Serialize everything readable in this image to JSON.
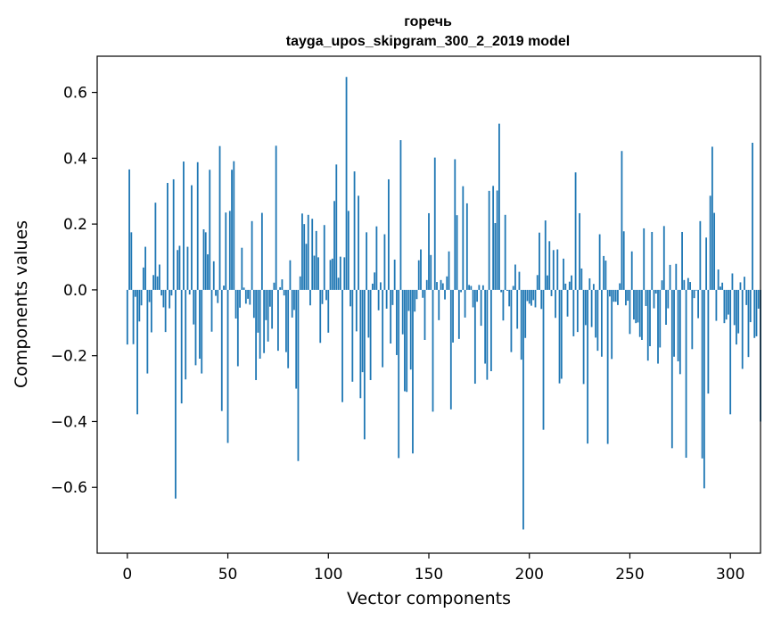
{
  "chart_data": {
    "type": "bar",
    "title": "горечь",
    "subtitle": "tayga_upos_skipgram_300_2_2019 model",
    "xlabel": "Vector components",
    "ylabel": "Components values",
    "xlim": [
      -15,
      315
    ],
    "ylim": [
      -0.8,
      0.71
    ],
    "xticks": [
      0,
      50,
      100,
      150,
      200,
      250,
      300
    ],
    "yticks": [
      0.6,
      0.4,
      0.2,
      0.0,
      -0.2,
      -0.4,
      -0.6
    ],
    "ytick_labels": [
      "0.6",
      "0.4",
      "0.2",
      "0.0",
      "−0.2",
      "−0.4",
      "−0.6"
    ],
    "bar_color": "#1f77b4",
    "values": [
      -0.166,
      0.366,
      0.175,
      -0.165,
      -0.021,
      -0.378,
      -0.096,
      -0.047,
      0.068,
      0.131,
      -0.254,
      -0.037,
      -0.129,
      0.045,
      0.265,
      0.041,
      0.077,
      -0.017,
      -0.053,
      -0.128,
      0.325,
      -0.056,
      -0.017,
      0.336,
      -0.634,
      0.121,
      0.134,
      -0.345,
      0.39,
      -0.272,
      0.131,
      -0.014,
      0.318,
      -0.105,
      -0.229,
      0.388,
      -0.209,
      -0.254,
      0.184,
      0.175,
      0.108,
      0.365,
      -0.127,
      0.087,
      -0.018,
      -0.04,
      0.437,
      -0.368,
      0.013,
      0.235,
      -0.465,
      0.24,
      0.365,
      0.391,
      -0.087,
      -0.232,
      -0.054,
      0.128,
      0.007,
      -0.042,
      -0.027,
      -0.045,
      0.209,
      -0.085,
      -0.274,
      -0.13,
      -0.209,
      0.234,
      -0.192,
      -0.092,
      -0.157,
      -0.051,
      -0.118,
      0.022,
      0.438,
      -0.185,
      0.008,
      0.032,
      -0.017,
      -0.189,
      -0.238,
      0.09,
      -0.084,
      -0.061,
      -0.3,
      -0.52,
      0.041,
      0.232,
      0.2,
      0.14,
      0.228,
      -0.047,
      0.216,
      0.104,
      0.179,
      0.099,
      -0.161,
      -0.043,
      0.197,
      -0.031,
      -0.13,
      0.091,
      0.095,
      0.27,
      0.381,
      0.037,
      0.101,
      -0.341,
      0.099,
      0.647,
      0.24,
      -0.05,
      -0.279,
      0.36,
      -0.126,
      0.286,
      -0.329,
      -0.25,
      -0.454,
      0.175,
      -0.145,
      -0.274,
      0.019,
      0.053,
      0.193,
      -0.062,
      0.023,
      -0.235,
      0.169,
      -0.057,
      0.336,
      -0.163,
      -0.046,
      0.092,
      -0.198,
      -0.511,
      0.455,
      -0.135,
      -0.308,
      -0.31,
      -0.064,
      -0.242,
      -0.497,
      -0.066,
      -0.028,
      0.09,
      0.123,
      -0.024,
      -0.152,
      0.03,
      0.233,
      0.106,
      -0.37,
      0.402,
      0.024,
      -0.092,
      0.03,
      0.02,
      -0.029,
      0.041,
      0.117,
      -0.363,
      -0.16,
      0.397,
      0.227,
      -0.149,
      -0.007,
      0.315,
      -0.084,
      0.263,
      0.015,
      0.012,
      -0.053,
      -0.285,
      -0.036,
      0.015,
      -0.109,
      0.014,
      -0.224,
      -0.273,
      0.301,
      -0.247,
      0.316,
      0.203,
      0.302,
      0.505,
      -0.007,
      -0.093,
      0.228,
      -0.003,
      -0.05,
      -0.189,
      0.012,
      0.077,
      -0.118,
      0.055,
      -0.212,
      -0.728,
      -0.146,
      -0.034,
      -0.042,
      -0.048,
      -0.031,
      -0.053,
      0.045,
      0.174,
      -0.058,
      -0.425,
      0.211,
      0.044,
      0.148,
      -0.019,
      0.121,
      -0.085,
      0.123,
      -0.284,
      -0.27,
      0.095,
      0.019,
      -0.081,
      0.025,
      0.044,
      -0.141,
      0.357,
      -0.128,
      0.233,
      0.065,
      -0.286,
      -0.107,
      -0.467,
      0.035,
      -0.113,
      0.018,
      -0.145,
      -0.185,
      0.169,
      -0.203,
      0.103,
      0.089,
      -0.468,
      -0.02,
      -0.21,
      -0.036,
      -0.036,
      -0.046,
      0.02,
      0.422,
      0.178,
      -0.047,
      -0.033,
      -0.134,
      0.117,
      -0.09,
      -0.101,
      -0.099,
      -0.143,
      -0.152,
      0.187,
      -0.049,
      -0.215,
      -0.171,
      0.176,
      -0.056,
      -0.011,
      -0.224,
      -0.175,
      0.029,
      0.194,
      -0.106,
      -0.056,
      0.076,
      -0.481,
      -0.203,
      0.079,
      -0.217,
      -0.256,
      0.176,
      0.03,
      -0.51,
      0.036,
      0.024,
      -0.18,
      -0.025,
      -0.002,
      -0.086,
      0.209,
      -0.512,
      -0.603,
      0.159,
      -0.315,
      0.286,
      0.435,
      0.234,
      -0.094,
      0.062,
      0.01,
      0.022,
      -0.101,
      -0.09,
      -0.075,
      -0.378,
      0.05,
      -0.107,
      -0.166,
      -0.132,
      0.023,
      -0.24,
      0.04,
      -0.046,
      -0.204,
      -0.098,
      0.447,
      -0.146,
      -0.141,
      -0.057,
      -0.4
    ]
  }
}
